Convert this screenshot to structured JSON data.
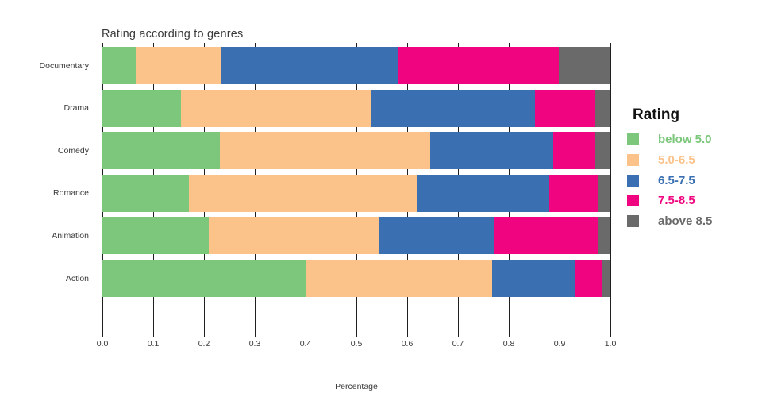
{
  "chart_data": {
    "type": "bar",
    "orientation": "horizontal",
    "stacked": true,
    "title": "Rating according to genres",
    "xlabel": "Percentage",
    "ylabel": "",
    "legend_title": "Rating",
    "legend_position": "right",
    "grid": true,
    "xlim": [
      0,
      1
    ],
    "x_ticks": [
      "0.0",
      "0.1",
      "0.2",
      "0.3",
      "0.4",
      "0.5",
      "0.6",
      "0.7",
      "0.8",
      "0.9",
      "1.0"
    ],
    "categories": [
      "Documentary",
      "Drama",
      "Comedy",
      "Romance",
      "Animation",
      "Action"
    ],
    "series": [
      {
        "name": "below 5.0",
        "color": "#7CC77B",
        "values": [
          0.066,
          0.155,
          0.231,
          0.171,
          0.21,
          0.4
        ]
      },
      {
        "name": "5.0-6.5",
        "color": "#FBC28A",
        "values": [
          0.169,
          0.373,
          0.415,
          0.448,
          0.335,
          0.367
        ]
      },
      {
        "name": "6.5-7.5",
        "color": "#3A6FB1",
        "values": [
          0.348,
          0.324,
          0.241,
          0.26,
          0.225,
          0.163
        ]
      },
      {
        "name": "7.5-8.5",
        "color": "#F0047F",
        "values": [
          0.315,
          0.116,
          0.082,
          0.098,
          0.205,
          0.055
        ]
      },
      {
        "name": "above 8.5",
        "color": "#6A6A6A",
        "values": [
          0.102,
          0.032,
          0.031,
          0.023,
          0.025,
          0.015
        ]
      }
    ]
  },
  "colors": {
    "background": "#ffffff",
    "gridline": "#1f1f1f",
    "text": "#3a3a3a",
    "legend_title_text": "#141414"
  }
}
